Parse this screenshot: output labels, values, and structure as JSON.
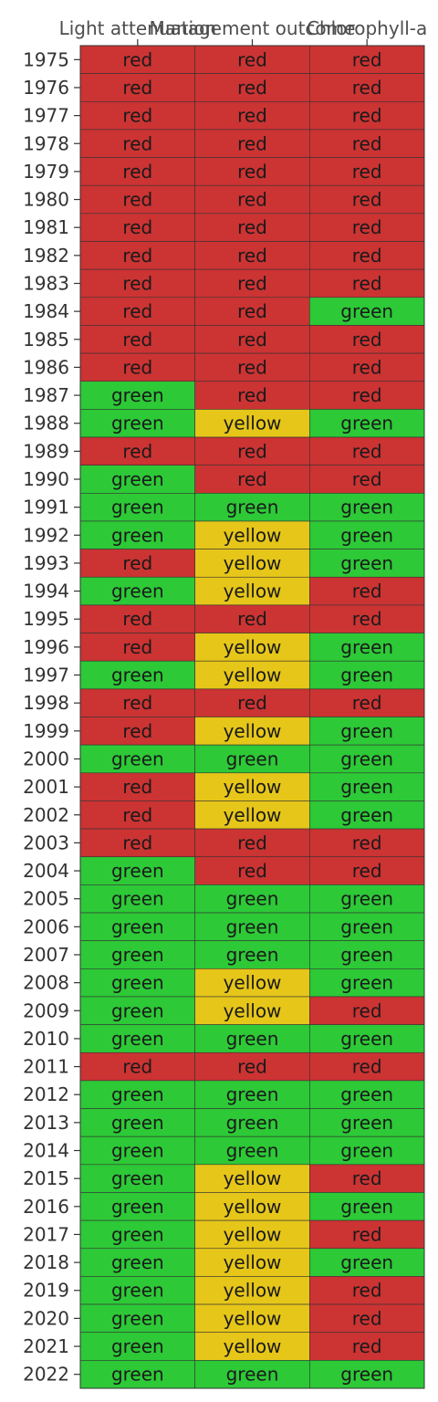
{
  "chart_data": {
    "type": "heatmap",
    "columns": [
      "Light attenuation",
      "Management outcome",
      "Chlorophyll-a"
    ],
    "rows": [
      "1975",
      "1976",
      "1977",
      "1978",
      "1979",
      "1980",
      "1981",
      "1982",
      "1983",
      "1984",
      "1985",
      "1986",
      "1987",
      "1988",
      "1989",
      "1990",
      "1991",
      "1992",
      "1993",
      "1994",
      "1995",
      "1996",
      "1997",
      "1998",
      "1999",
      "2000",
      "2001",
      "2002",
      "2003",
      "2004",
      "2005",
      "2006",
      "2007",
      "2008",
      "2009",
      "2010",
      "2011",
      "2012",
      "2013",
      "2014",
      "2015",
      "2016",
      "2017",
      "2018",
      "2019",
      "2020",
      "2021",
      "2022"
    ],
    "values": [
      [
        "red",
        "red",
        "red"
      ],
      [
        "red",
        "red",
        "red"
      ],
      [
        "red",
        "red",
        "red"
      ],
      [
        "red",
        "red",
        "red"
      ],
      [
        "red",
        "red",
        "red"
      ],
      [
        "red",
        "red",
        "red"
      ],
      [
        "red",
        "red",
        "red"
      ],
      [
        "red",
        "red",
        "red"
      ],
      [
        "red",
        "red",
        "red"
      ],
      [
        "red",
        "red",
        "green"
      ],
      [
        "red",
        "red",
        "red"
      ],
      [
        "red",
        "red",
        "red"
      ],
      [
        "green",
        "red",
        "red"
      ],
      [
        "green",
        "yellow",
        "green"
      ],
      [
        "red",
        "red",
        "red"
      ],
      [
        "green",
        "red",
        "red"
      ],
      [
        "green",
        "green",
        "green"
      ],
      [
        "green",
        "yellow",
        "green"
      ],
      [
        "red",
        "yellow",
        "green"
      ],
      [
        "green",
        "yellow",
        "red"
      ],
      [
        "red",
        "red",
        "red"
      ],
      [
        "red",
        "yellow",
        "green"
      ],
      [
        "green",
        "yellow",
        "green"
      ],
      [
        "red",
        "red",
        "red"
      ],
      [
        "red",
        "yellow",
        "green"
      ],
      [
        "green",
        "green",
        "green"
      ],
      [
        "red",
        "yellow",
        "green"
      ],
      [
        "red",
        "yellow",
        "green"
      ],
      [
        "red",
        "red",
        "red"
      ],
      [
        "green",
        "red",
        "red"
      ],
      [
        "green",
        "green",
        "green"
      ],
      [
        "green",
        "green",
        "green"
      ],
      [
        "green",
        "green",
        "green"
      ],
      [
        "green",
        "yellow",
        "green"
      ],
      [
        "green",
        "yellow",
        "red"
      ],
      [
        "green",
        "green",
        "green"
      ],
      [
        "red",
        "red",
        "red"
      ],
      [
        "green",
        "green",
        "green"
      ],
      [
        "green",
        "green",
        "green"
      ],
      [
        "green",
        "green",
        "green"
      ],
      [
        "green",
        "yellow",
        "red"
      ],
      [
        "green",
        "yellow",
        "green"
      ],
      [
        "green",
        "yellow",
        "red"
      ],
      [
        "green",
        "yellow",
        "green"
      ],
      [
        "green",
        "yellow",
        "red"
      ],
      [
        "green",
        "yellow",
        "red"
      ],
      [
        "green",
        "yellow",
        "red"
      ],
      [
        "green",
        "green",
        "green"
      ]
    ],
    "colors": {
      "red": "#cc3333",
      "yellow": "#e6c619",
      "green": "#2dc937"
    },
    "x_axis_position": "top",
    "grid": false,
    "legend": "none"
  }
}
